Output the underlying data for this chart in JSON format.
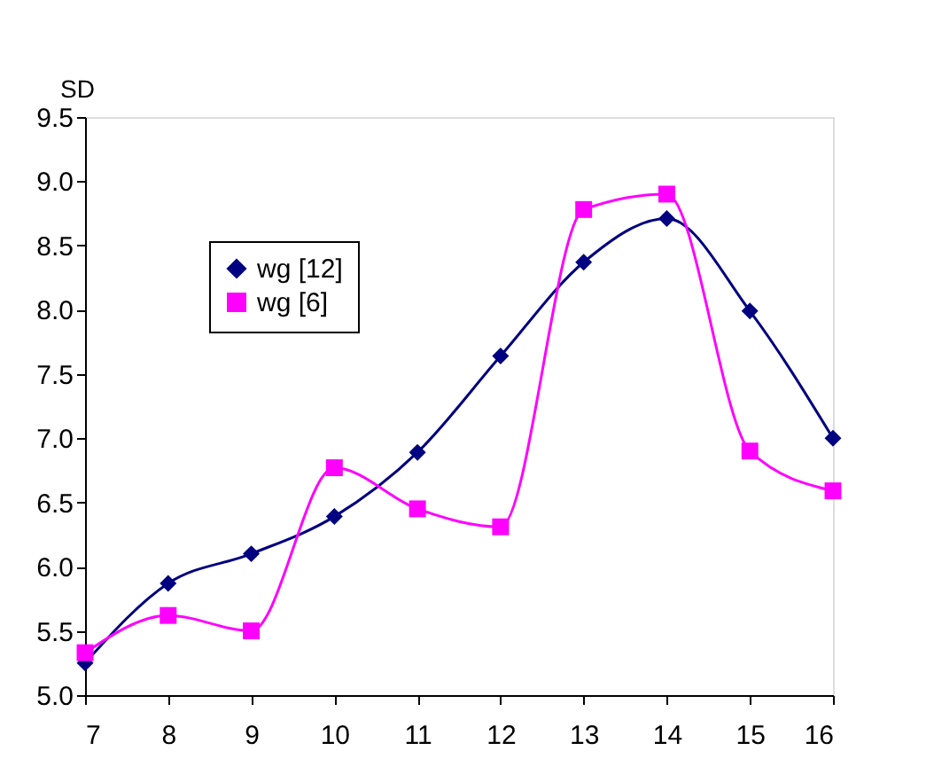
{
  "chart_data": {
    "type": "line",
    "ylabel": "SD",
    "x": [
      7,
      8,
      9,
      10,
      11,
      12,
      13,
      14,
      15,
      16
    ],
    "series": [
      {
        "name": "wg [12]",
        "color": "#000080",
        "marker": "diamond",
        "values": [
          5.25,
          5.87,
          6.1,
          6.39,
          6.89,
          7.64,
          8.37,
          8.71,
          7.99,
          7.0
        ]
      },
      {
        "name": "wg [6]",
        "color": "#ff00ff",
        "marker": "square",
        "values": [
          5.33,
          5.62,
          5.5,
          6.77,
          6.45,
          6.31,
          8.78,
          8.9,
          6.9,
          6.59
        ]
      }
    ],
    "xlim": [
      7,
      16
    ],
    "xticks": [
      7,
      8,
      9,
      10,
      11,
      12,
      13,
      14,
      15,
      16
    ],
    "ylim": [
      5.0,
      9.5
    ],
    "yticks": [
      {
        "value": 5,
        "label": "5.0"
      },
      5.5,
      {
        "value": 6,
        "label": "6.0"
      },
      6.5,
      {
        "value": 7,
        "label": "7.0"
      },
      7.5,
      {
        "value": 8,
        "label": "8.0"
      },
      8.5,
      {
        "value": 9,
        "label": "9.0"
      },
      9.5
    ],
    "grid": false,
    "legend": "top left",
    "line_style": "solid"
  }
}
